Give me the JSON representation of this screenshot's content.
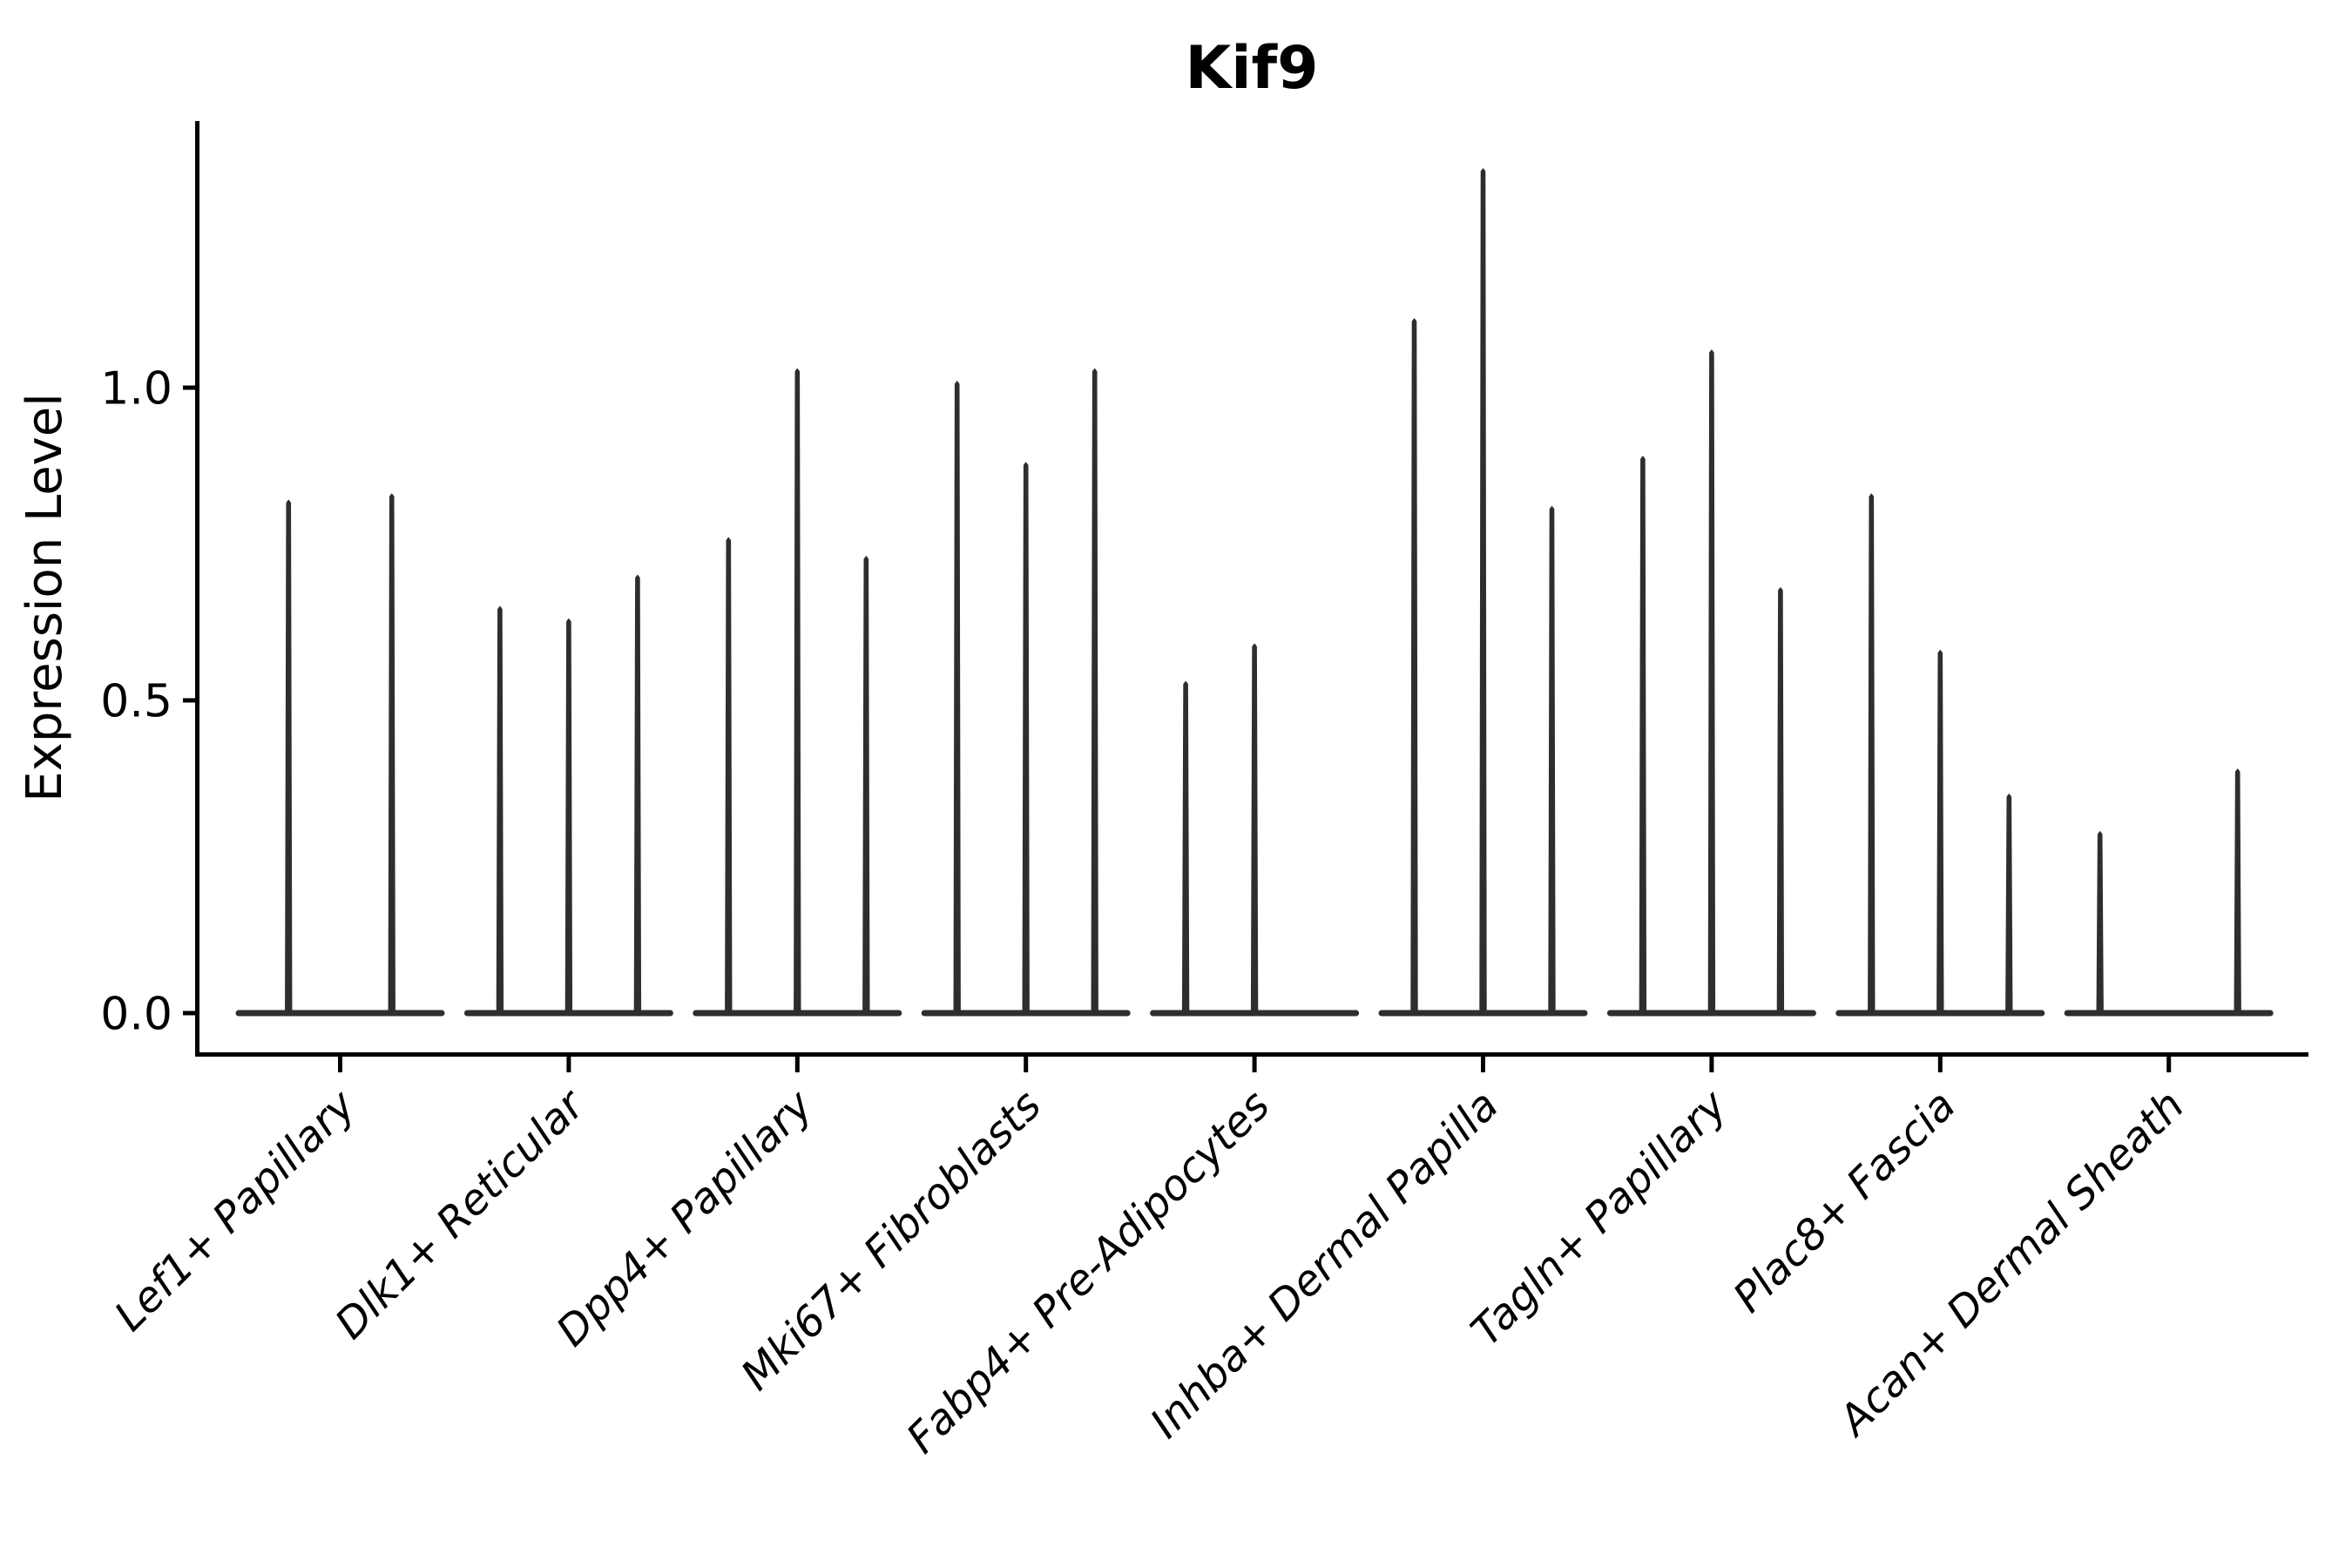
{
  "figure": {
    "title": "Kif9"
  },
  "chart_data": {
    "type": "violin",
    "title": "Kif9",
    "xlabel": "",
    "ylabel": "Expression Level",
    "y_ticks": [
      {
        "label": "0.0",
        "value": 0.0
      },
      {
        "label": "0.5",
        "value": 0.5
      },
      {
        "label": "1.0",
        "value": 1.0
      }
    ],
    "ylim": [
      -0.07,
      1.43
    ],
    "grid": false,
    "legend": "none",
    "categories": [
      "Lef1+ Papillary",
      "Dlk1+ Reticular",
      "Dpp4+ Papillary",
      "Mki67+ Fibroblasts",
      "Fabp4+ Pre-Adipocytes",
      "Inhba+ Dermal Papilla",
      "Tagln+ Papillary",
      "Plac8+ Fascia",
      "Acan+ Dermal Sheath"
    ],
    "groups": [
      {
        "category": "Lef1+ Papillary",
        "violin_maxima": [
          0.82,
          0.83
        ]
      },
      {
        "category": "Dlk1+ Reticular",
        "violin_maxima": [
          0.65,
          0.63,
          0.7
        ]
      },
      {
        "category": "Dpp4+ Papillary",
        "violin_maxima": [
          0.76,
          1.03,
          0.73
        ]
      },
      {
        "category": "Mki67+ Fibroblasts",
        "violin_maxima": [
          1.01,
          0.88,
          1.03
        ]
      },
      {
        "category": "Fabp4+ Pre-Adipocytes",
        "violin_maxima": [
          0.53,
          0.59,
          0.0
        ]
      },
      {
        "category": "Inhba+ Dermal Papilla",
        "violin_maxima": [
          1.11,
          1.35,
          0.81
        ]
      },
      {
        "category": "Tagln+ Papillary",
        "violin_maxima": [
          0.89,
          1.06,
          0.68
        ]
      },
      {
        "category": "Plac8+ Fascia",
        "violin_maxima": [
          0.83,
          0.58,
          0.35
        ]
      },
      {
        "category": "Acan+ Dermal Sheath",
        "violin_maxima": [
          0.29,
          0.0,
          0.39
        ]
      }
    ],
    "colors": {
      "violin": "#2e2e2e",
      "axis": "#000000",
      "text": "#000000",
      "background": "#ffffff"
    }
  }
}
